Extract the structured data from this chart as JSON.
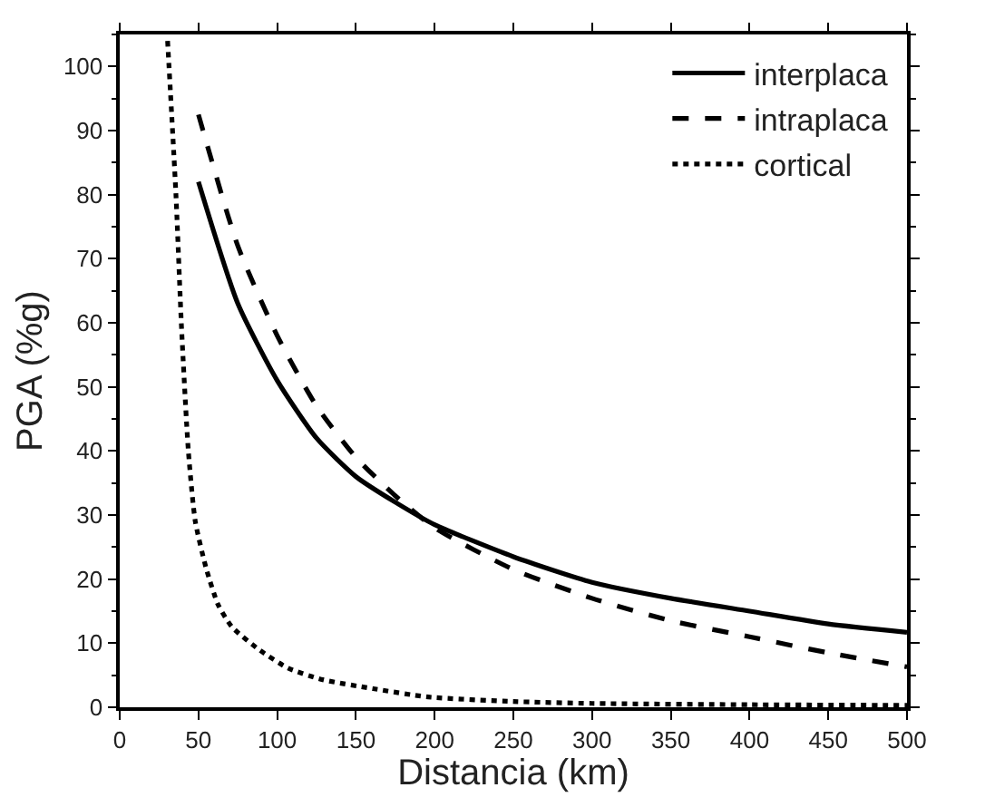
{
  "chart_data": {
    "type": "line",
    "xlabel": "Distancia (km)",
    "ylabel": "PGA (%g)",
    "xlim": [
      0,
      500
    ],
    "ylim": [
      0,
      105
    ],
    "xticks": [
      0,
      50,
      100,
      150,
      200,
      250,
      300,
      350,
      400,
      450,
      500
    ],
    "yticks": [
      0,
      10,
      20,
      30,
      40,
      50,
      60,
      70,
      80,
      90,
      100
    ],
    "legend": "top right",
    "marker": "none",
    "series": [
      {
        "name": "interplaca",
        "color": "#000000",
        "line_style": "solid",
        "x": [
          50,
          75,
          100,
          125,
          150,
          175,
          200,
          250,
          300,
          350,
          400,
          450,
          500
        ],
        "values": [
          82,
          63,
          51,
          42,
          36,
          32,
          28.5,
          23.5,
          19.5,
          17,
          15,
          13,
          11.7
        ]
      },
      {
        "name": "intraplaca",
        "color": "#000000",
        "line_style": "dashed",
        "x": [
          50,
          75,
          100,
          125,
          150,
          175,
          200,
          250,
          300,
          350,
          400,
          450,
          500
        ],
        "values": [
          92.5,
          72,
          58,
          47,
          39,
          33,
          28,
          21.5,
          17,
          13.5,
          11,
          8.5,
          6.3
        ]
      },
      {
        "name": "cortical",
        "color": "#000000",
        "line_style": "dotted",
        "x": [
          30.4,
          35.7,
          39.3,
          43.6,
          48,
          55,
          62.5,
          71.4,
          89,
          107,
          129,
          161,
          196,
          250,
          300,
          400,
          500
        ],
        "values": [
          104,
          80,
          59,
          40,
          29,
          21.6,
          16,
          12.5,
          8.9,
          6.1,
          4.3,
          2.9,
          1.6,
          0.9,
          0.6,
          0.4,
          0.3
        ]
      }
    ]
  }
}
